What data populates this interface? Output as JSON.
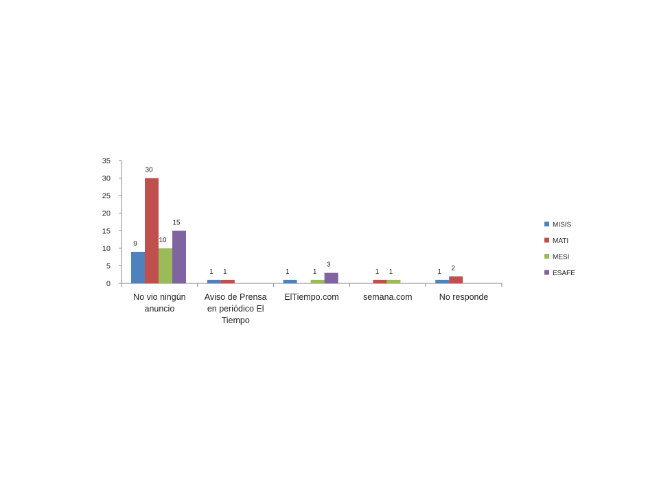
{
  "chart_data": {
    "type": "bar",
    "categories": [
      [
        "No vio ningún",
        "anuncio"
      ],
      [
        "Aviso de Prensa",
        "en periódico El",
        "Tiempo"
      ],
      [
        "ElTiempo.com"
      ],
      [
        "semana.com"
      ],
      [
        "No responde"
      ]
    ],
    "series": [
      {
        "name": "MISIS",
        "color": "#4F81BD",
        "values": [
          9,
          1,
          1,
          null,
          1
        ]
      },
      {
        "name": "MATI",
        "color": "#C0504D",
        "values": [
          30,
          1,
          null,
          1,
          2
        ]
      },
      {
        "name": "MESI",
        "color": "#9BBB59",
        "values": [
          10,
          null,
          1,
          1,
          null
        ]
      },
      {
        "name": "ESAFE",
        "color": "#8064A2",
        "values": [
          15,
          null,
          3,
          null,
          null
        ]
      }
    ],
    "ylim": [
      0,
      35
    ],
    "yticks": [
      0,
      5,
      10,
      15,
      20,
      25,
      30,
      35
    ],
    "grid": false,
    "legend_position": "right",
    "data_labels": true
  }
}
